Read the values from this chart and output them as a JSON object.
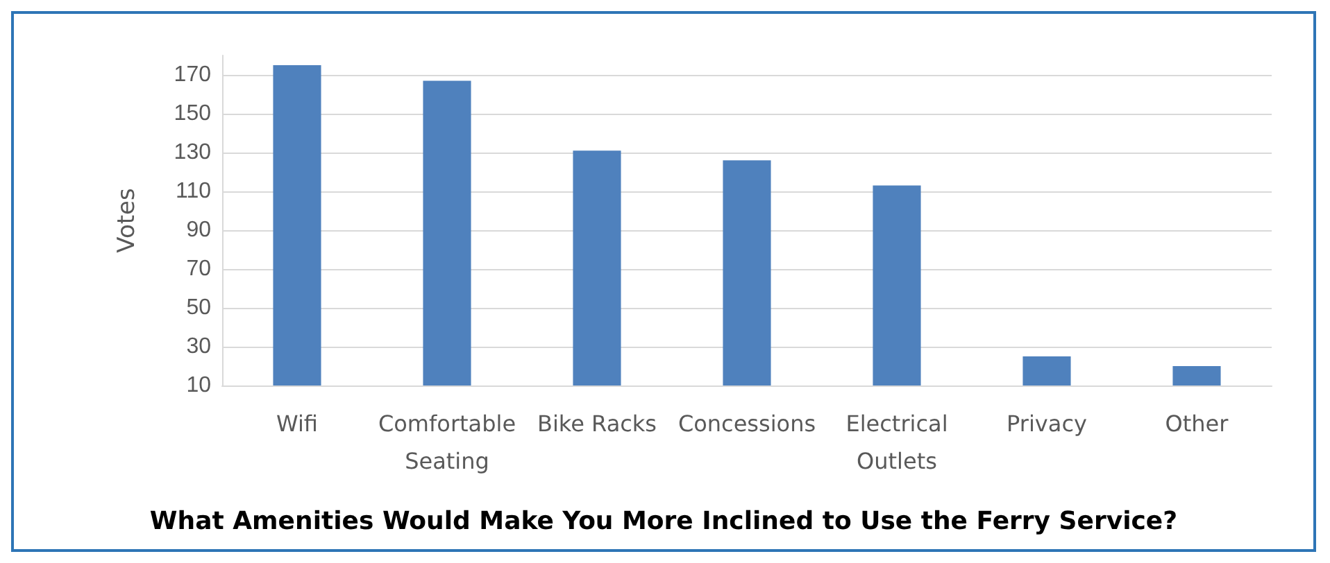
{
  "chart_data": {
    "type": "bar",
    "title": "What Amenities Would Make You More Inclined to Use the Ferry Service?",
    "ylabel": "Votes",
    "categories": [
      "Wifi",
      "Comfortable\nSeating",
      "Bike Racks",
      "Concessions",
      "Electrical\nOutlets",
      "Privacy",
      "Other"
    ],
    "values": [
      175,
      167,
      131,
      126,
      113,
      25,
      20
    ],
    "color": "#4f81bd",
    "ylim": [
      10,
      180
    ],
    "yticks": [
      10,
      30,
      50,
      70,
      90,
      110,
      130,
      150,
      170
    ],
    "grid": "y"
  }
}
